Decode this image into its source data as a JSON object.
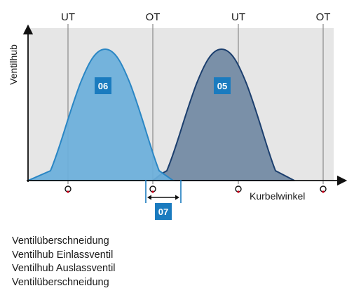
{
  "diagram": {
    "tick_labels": [
      "UT",
      "OT",
      "UT",
      "OT"
    ],
    "y_axis_label": "Ventilhub",
    "x_axis_label": "Kurbelwinkel",
    "badges": {
      "intake": "06",
      "exhaust": "05",
      "overlap": "07"
    },
    "colors": {
      "plot_background": "#e6e6e6",
      "intake_fill": "#6aafdb",
      "intake_stroke": "#2a86c4",
      "exhaust_fill": "#7a90a8",
      "exhaust_stroke": "#1c3f6e",
      "badge": "#1a7bbf",
      "axis": "#111111",
      "guide_lines": "#888888",
      "markers": "#d0021b"
    }
  },
  "legend": [
    "Ventilüberschneidung",
    "Ventilhub Einlassventil",
    "Ventilhub Auslassventil",
    "Ventilüberschneidung"
  ]
}
